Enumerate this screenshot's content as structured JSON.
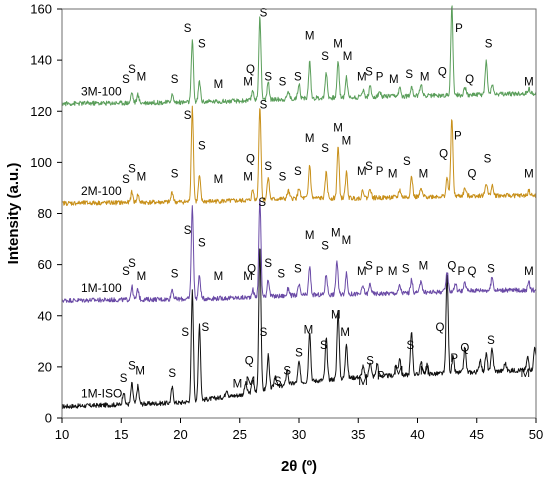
{
  "chart_data": {
    "type": "line",
    "xlabel": "2θ (º)",
    "ylabel": "Intensity (a.u.)",
    "xlim": [
      10,
      50
    ],
    "ylim": [
      0,
      160
    ],
    "x_ticks": [
      10,
      15,
      20,
      25,
      30,
      35,
      40,
      45,
      50
    ],
    "y_ticks": [
      0,
      20,
      40,
      60,
      80,
      100,
      120,
      140,
      160
    ],
    "grid": false,
    "legend": "none",
    "series": [
      {
        "name": "1M-ISO",
        "color": "#111111",
        "baseline": [
          [
            10,
            4.5
          ],
          [
            20,
            6
          ],
          [
            25,
            9
          ],
          [
            30,
            14
          ],
          [
            35,
            16
          ],
          [
            40,
            17
          ],
          [
            45,
            18
          ],
          [
            50,
            19
          ]
        ],
        "peaks": [
          [
            15.2,
            5
          ],
          [
            15.9,
            8
          ],
          [
            16.4,
            7
          ],
          [
            19.3,
            6
          ],
          [
            21.0,
            43
          ],
          [
            21.6,
            30
          ],
          [
            23.9,
            3
          ],
          [
            25.5,
            4
          ],
          [
            26.1,
            5
          ],
          [
            26.7,
            57
          ],
          [
            27.4,
            13
          ],
          [
            28.0,
            5
          ],
          [
            29.0,
            6
          ],
          [
            30.0,
            8
          ],
          [
            30.9,
            20
          ],
          [
            32.3,
            16
          ],
          [
            33.3,
            27
          ],
          [
            34.0,
            14
          ],
          [
            35.4,
            4
          ],
          [
            36.0,
            6
          ],
          [
            36.6,
            5
          ],
          [
            38.2,
            4
          ],
          [
            38.5,
            7
          ],
          [
            39.5,
            17
          ],
          [
            40.3,
            5
          ],
          [
            40.8,
            4
          ],
          [
            42.5,
            39
          ],
          [
            43.0,
            6
          ],
          [
            44.0,
            10
          ],
          [
            45.3,
            5
          ],
          [
            45.8,
            7
          ],
          [
            46.3,
            9
          ],
          [
            47.4,
            3
          ],
          [
            49.3,
            5
          ],
          [
            49.9,
            9
          ]
        ],
        "peak_labels": [
          {
            "text": "S",
            "x": 15.2,
            "y": 14
          },
          {
            "text": "S",
            "x": 15.9,
            "y": 19
          },
          {
            "text": "M",
            "x": 16.6,
            "y": 17
          },
          {
            "text": "S",
            "x": 19.3,
            "y": 16
          },
          {
            "text": "S",
            "x": 20.4,
            "y": 32
          },
          {
            "text": "S",
            "x": 22.1,
            "y": 34
          },
          {
            "text": "M",
            "x": 24.8,
            "y": 12
          },
          {
            "text": "M",
            "x": 25.9,
            "y": 13
          },
          {
            "text": "Q",
            "x": 25.8,
            "y": 21
          },
          {
            "text": "S",
            "x": 27.0,
            "y": 32
          },
          {
            "text": "S",
            "x": 28.2,
            "y": 13
          },
          {
            "text": "S",
            "x": 29.0,
            "y": 17
          },
          {
            "text": "S",
            "x": 30.0,
            "y": 24
          },
          {
            "text": "M",
            "x": 30.8,
            "y": 33
          },
          {
            "text": "S",
            "x": 32.1,
            "y": 27
          },
          {
            "text": "M",
            "x": 33.1,
            "y": 39
          },
          {
            "text": "M",
            "x": 33.9,
            "y": 32
          },
          {
            "text": "M",
            "x": 35.4,
            "y": 13
          },
          {
            "text": "S",
            "x": 36.0,
            "y": 21
          },
          {
            "text": "P",
            "x": 36.9,
            "y": 15
          },
          {
            "text": "M",
            "x": 38.4,
            "y": 17
          },
          {
            "text": "S",
            "x": 39.4,
            "y": 27
          },
          {
            "text": "M",
            "x": 40.6,
            "y": 17
          },
          {
            "text": "Q",
            "x": 41.9,
            "y": 34
          },
          {
            "text": "P",
            "x": 43.1,
            "y": 22
          },
          {
            "text": "Q",
            "x": 44.0,
            "y": 26
          },
          {
            "text": "S",
            "x": 46.2,
            "y": 29
          },
          {
            "text": "M",
            "x": 49.1,
            "y": 16
          }
        ]
      },
      {
        "name": "1M-100",
        "color": "#6a4aa6",
        "baseline": [
          [
            10,
            46
          ],
          [
            20,
            46.5
          ],
          [
            25,
            47
          ],
          [
            30,
            48
          ],
          [
            35,
            48.5
          ],
          [
            40,
            49
          ],
          [
            45,
            50
          ],
          [
            50,
            50
          ]
        ],
        "peaks": [
          [
            15.9,
            5
          ],
          [
            16.4,
            4
          ],
          [
            19.3,
            4
          ],
          [
            21.0,
            36
          ],
          [
            21.6,
            9
          ],
          [
            26.1,
            3
          ],
          [
            26.7,
            38
          ],
          [
            27.4,
            7
          ],
          [
            29.1,
            3
          ],
          [
            30.0,
            4
          ],
          [
            30.9,
            11
          ],
          [
            32.3,
            8
          ],
          [
            33.2,
            13
          ],
          [
            34.0,
            8
          ],
          [
            35.4,
            3
          ],
          [
            36.0,
            4
          ],
          [
            38.5,
            3
          ],
          [
            39.5,
            5
          ],
          [
            40.3,
            5
          ],
          [
            42.5,
            8
          ],
          [
            43.2,
            3
          ],
          [
            44.0,
            3
          ],
          [
            46.3,
            5
          ],
          [
            49.4,
            3
          ]
        ],
        "peak_labels": [
          {
            "text": "S",
            "x": 15.4,
            "y": 56
          },
          {
            "text": "S",
            "x": 15.9,
            "y": 59
          },
          {
            "text": "M",
            "x": 16.7,
            "y": 54
          },
          {
            "text": "S",
            "x": 19.5,
            "y": 55
          },
          {
            "text": "S",
            "x": 20.6,
            "y": 72
          },
          {
            "text": "S",
            "x": 21.8,
            "y": 67
          },
          {
            "text": "M",
            "x": 23.2,
            "y": 54
          },
          {
            "text": "M",
            "x": 25.7,
            "y": 54
          },
          {
            "text": "Q",
            "x": 26.0,
            "y": 57
          },
          {
            "text": "S",
            "x": 26.9,
            "y": 83
          },
          {
            "text": "S",
            "x": 27.4,
            "y": 59
          },
          {
            "text": "S",
            "x": 28.5,
            "y": 55
          },
          {
            "text": "S",
            "x": 29.9,
            "y": 57
          },
          {
            "text": "M",
            "x": 30.9,
            "y": 70
          },
          {
            "text": "S",
            "x": 32.2,
            "y": 66
          },
          {
            "text": "M",
            "x": 33.1,
            "y": 71
          },
          {
            "text": "M",
            "x": 34.0,
            "y": 68
          },
          {
            "text": "M",
            "x": 35.3,
            "y": 56
          },
          {
            "text": "S",
            "x": 35.9,
            "y": 58
          },
          {
            "text": "P",
            "x": 36.8,
            "y": 56
          },
          {
            "text": "M",
            "x": 37.9,
            "y": 56
          },
          {
            "text": "S",
            "x": 39.0,
            "y": 57
          },
          {
            "text": "M",
            "x": 40.5,
            "y": 58
          },
          {
            "text": "Q",
            "x": 42.9,
            "y": 58
          },
          {
            "text": "P",
            "x": 43.7,
            "y": 56
          },
          {
            "text": "Q",
            "x": 44.6,
            "y": 56
          },
          {
            "text": "S",
            "x": 46.2,
            "y": 57
          },
          {
            "text": "M",
            "x": 49.4,
            "y": 56
          }
        ]
      },
      {
        "name": "2M-100",
        "color": "#c8901a",
        "baseline": [
          [
            10,
            84
          ],
          [
            20,
            84.5
          ],
          [
            25,
            85
          ],
          [
            30,
            86
          ],
          [
            35,
            86
          ],
          [
            40,
            86.5
          ],
          [
            45,
            87
          ],
          [
            50,
            87
          ]
        ],
        "peaks": [
          [
            15.9,
            4
          ],
          [
            16.4,
            3
          ],
          [
            19.3,
            4
          ],
          [
            21.0,
            37
          ],
          [
            21.6,
            10
          ],
          [
            26.1,
            4
          ],
          [
            26.7,
            37
          ],
          [
            27.4,
            9
          ],
          [
            29.1,
            3
          ],
          [
            30.0,
            4
          ],
          [
            30.9,
            13
          ],
          [
            32.3,
            10
          ],
          [
            33.3,
            20
          ],
          [
            34.0,
            10
          ],
          [
            35.4,
            3
          ],
          [
            36.0,
            4
          ],
          [
            38.5,
            3
          ],
          [
            39.5,
            8
          ],
          [
            40.3,
            3
          ],
          [
            42.5,
            7
          ],
          [
            42.9,
            31
          ],
          [
            44.0,
            3
          ],
          [
            45.8,
            5
          ],
          [
            46.3,
            4
          ],
          [
            49.4,
            2
          ]
        ],
        "peak_labels": [
          {
            "text": "S",
            "x": 15.4,
            "y": 92
          },
          {
            "text": "S",
            "x": 15.9,
            "y": 96
          },
          {
            "text": "M",
            "x": 16.7,
            "y": 93
          },
          {
            "text": "S",
            "x": 19.5,
            "y": 94
          },
          {
            "text": "S",
            "x": 20.6,
            "y": 117
          },
          {
            "text": "S",
            "x": 21.8,
            "y": 105
          },
          {
            "text": "M",
            "x": 23.2,
            "y": 92
          },
          {
            "text": "M",
            "x": 25.7,
            "y": 93
          },
          {
            "text": "Q",
            "x": 25.9,
            "y": 100
          },
          {
            "text": "S",
            "x": 27.0,
            "y": 121
          },
          {
            "text": "S",
            "x": 27.4,
            "y": 97
          },
          {
            "text": "S",
            "x": 28.6,
            "y": 93
          },
          {
            "text": "S",
            "x": 29.9,
            "y": 95
          },
          {
            "text": "M",
            "x": 30.9,
            "y": 108
          },
          {
            "text": "S",
            "x": 32.2,
            "y": 104
          },
          {
            "text": "M",
            "x": 33.3,
            "y": 112
          },
          {
            "text": "M",
            "x": 34.0,
            "y": 107
          },
          {
            "text": "M",
            "x": 35.3,
            "y": 95
          },
          {
            "text": "S",
            "x": 35.9,
            "y": 97
          },
          {
            "text": "P",
            "x": 36.8,
            "y": 95
          },
          {
            "text": "M",
            "x": 37.9,
            "y": 94
          },
          {
            "text": "S",
            "x": 39.1,
            "y": 99
          },
          {
            "text": "M",
            "x": 40.5,
            "y": 94
          },
          {
            "text": "Q",
            "x": 42.2,
            "y": 102
          },
          {
            "text": "P",
            "x": 43.4,
            "y": 109
          },
          {
            "text": "Q",
            "x": 44.6,
            "y": 94
          },
          {
            "text": "S",
            "x": 45.9,
            "y": 100
          },
          {
            "text": "M",
            "x": 49.4,
            "y": 94
          }
        ]
      },
      {
        "name": "3M-100",
        "color": "#5a9e5a",
        "baseline": [
          [
            10,
            123
          ],
          [
            20,
            123.5
          ],
          [
            25,
            124
          ],
          [
            30,
            125
          ],
          [
            35,
            125.5
          ],
          [
            40,
            126
          ],
          [
            45,
            126.5
          ],
          [
            50,
            127
          ]
        ],
        "peaks": [
          [
            15.9,
            4
          ],
          [
            16.4,
            3
          ],
          [
            19.3,
            3
          ],
          [
            21.0,
            24
          ],
          [
            21.6,
            8
          ],
          [
            26.1,
            4
          ],
          [
            26.7,
            33
          ],
          [
            27.4,
            7
          ],
          [
            29.1,
            3
          ],
          [
            30.0,
            6
          ],
          [
            30.9,
            14
          ],
          [
            32.3,
            10
          ],
          [
            33.3,
            14
          ],
          [
            34.0,
            8
          ],
          [
            35.4,
            3
          ],
          [
            36.0,
            4
          ],
          [
            36.8,
            2
          ],
          [
            38.5,
            3
          ],
          [
            39.5,
            4
          ],
          [
            40.3,
            5
          ],
          [
            42.9,
            35
          ],
          [
            44.0,
            3
          ],
          [
            45.8,
            13
          ],
          [
            46.3,
            4
          ],
          [
            49.4,
            2
          ]
        ],
        "peak_labels": [
          {
            "text": "S",
            "x": 15.4,
            "y": 131
          },
          {
            "text": "S",
            "x": 15.9,
            "y": 135
          },
          {
            "text": "M",
            "x": 16.7,
            "y": 132
          },
          {
            "text": "S",
            "x": 19.5,
            "y": 131
          },
          {
            "text": "S",
            "x": 20.6,
            "y": 151
          },
          {
            "text": "S",
            "x": 21.8,
            "y": 145
          },
          {
            "text": "M",
            "x": 23.2,
            "y": 129
          },
          {
            "text": "M",
            "x": 25.7,
            "y": 130
          },
          {
            "text": "Q",
            "x": 25.9,
            "y": 135
          },
          {
            "text": "S",
            "x": 27.0,
            "y": 157
          },
          {
            "text": "S",
            "x": 27.4,
            "y": 132
          },
          {
            "text": "S",
            "x": 28.6,
            "y": 130
          },
          {
            "text": "S",
            "x": 29.9,
            "y": 132
          },
          {
            "text": "M",
            "x": 30.9,
            "y": 148
          },
          {
            "text": "S",
            "x": 32.2,
            "y": 140
          },
          {
            "text": "M",
            "x": 33.3,
            "y": 145
          },
          {
            "text": "M",
            "x": 34.1,
            "y": 140
          },
          {
            "text": "M",
            "x": 35.3,
            "y": 132
          },
          {
            "text": "S",
            "x": 35.9,
            "y": 134
          },
          {
            "text": "P",
            "x": 36.8,
            "y": 132
          },
          {
            "text": "M",
            "x": 38.0,
            "y": 131
          },
          {
            "text": "S",
            "x": 39.3,
            "y": 133
          },
          {
            "text": "M",
            "x": 40.6,
            "y": 132
          },
          {
            "text": "Q",
            "x": 42.1,
            "y": 134
          },
          {
            "text": "P",
            "x": 43.5,
            "y": 151
          },
          {
            "text": "Q",
            "x": 44.4,
            "y": 131
          },
          {
            "text": "S",
            "x": 46.0,
            "y": 145
          },
          {
            "text": "M",
            "x": 49.4,
            "y": 130
          }
        ]
      }
    ]
  }
}
